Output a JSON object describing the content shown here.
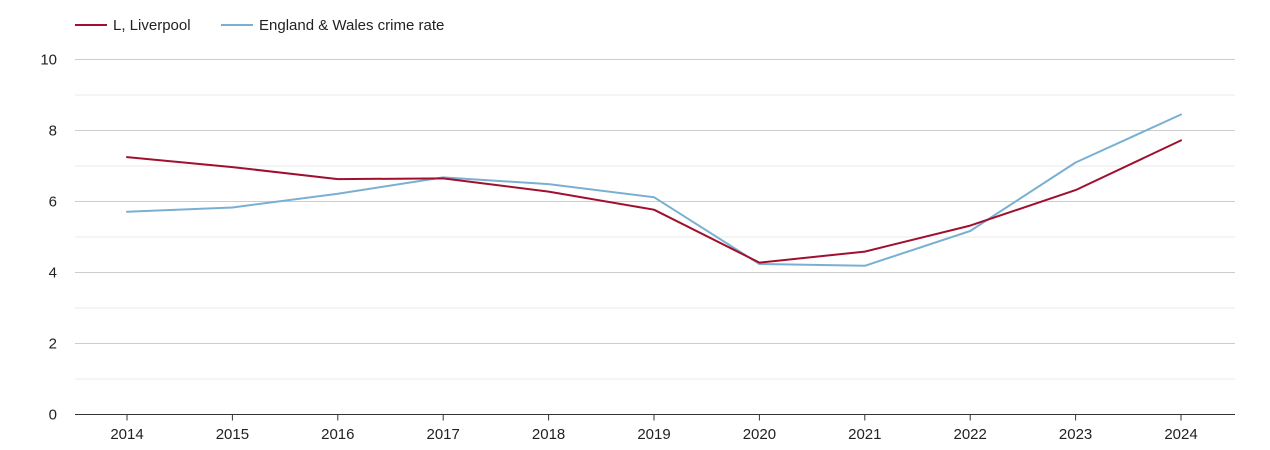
{
  "chart_data": {
    "type": "line",
    "title": "",
    "xlabel": "",
    "ylabel": "",
    "categories": [
      "2014",
      "2015",
      "2016",
      "2017",
      "2018",
      "2019",
      "2020",
      "2021",
      "2022",
      "2023",
      "2024"
    ],
    "yticks": [
      "0",
      "2",
      "4",
      "6",
      "8",
      "10"
    ],
    "ylim": [
      0,
      10
    ],
    "grid": true,
    "legend_position": "top-left",
    "series": [
      {
        "name": "L, Liverpool",
        "color": "#a0102e",
        "values": [
          7.25,
          6.97,
          6.63,
          6.65,
          6.28,
          5.77,
          4.28,
          4.59,
          5.32,
          6.32,
          7.72
        ]
      },
      {
        "name": "England & Wales crime rate",
        "color": "#79b0d2",
        "values": [
          5.71,
          5.83,
          6.22,
          6.68,
          6.49,
          6.12,
          4.24,
          4.19,
          5.17,
          7.1,
          8.45
        ]
      }
    ]
  }
}
